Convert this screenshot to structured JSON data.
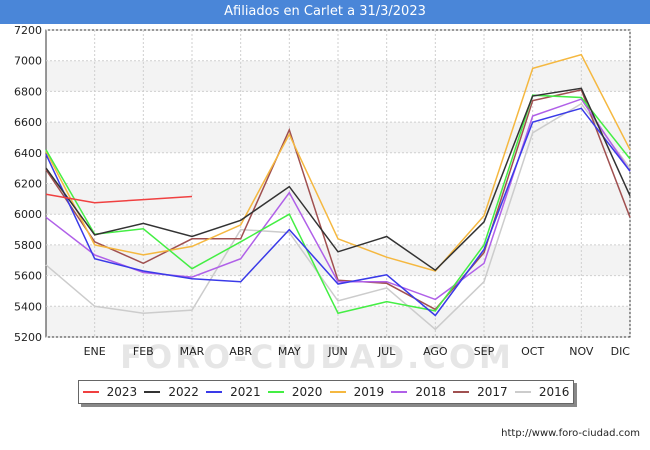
{
  "title": "Afiliados en Carlet a 31/3/2023",
  "source": "http://www.foro-ciudad.com",
  "watermark": "FORO-CIUDAD.COM",
  "chart_data": {
    "type": "line",
    "title": "Afiliados en Carlet a 31/3/2023",
    "categories": [
      "ENE",
      "FEB",
      "MAR",
      "ABR",
      "MAY",
      "JUN",
      "JUL",
      "AGO",
      "SEP",
      "OCT",
      "NOV",
      "DIC"
    ],
    "ylim": [
      5200,
      7200
    ],
    "yticks": [
      5200,
      5400,
      5600,
      5800,
      6000,
      6200,
      6400,
      6600,
      6800,
      7000,
      7200
    ],
    "grid": true,
    "legend_position": "bottom",
    "series": [
      {
        "name": "2023",
        "color": "#f04040",
        "start": 6130,
        "values": [
          6075,
          6095,
          6115,
          null,
          null,
          null,
          null,
          null,
          null,
          null,
          null,
          null
        ]
      },
      {
        "name": "2022",
        "color": "#333333",
        "start": 6300,
        "values": [
          5865,
          5940,
          5855,
          5960,
          6180,
          5755,
          5855,
          5635,
          5950,
          6770,
          6820,
          6120
        ]
      },
      {
        "name": "2021",
        "color": "#3a3ae8",
        "start": 6390,
        "values": [
          5710,
          5630,
          5580,
          5560,
          5900,
          5545,
          5605,
          5340,
          5770,
          6600,
          6690,
          6280
        ]
      },
      {
        "name": "2020",
        "color": "#44ee44",
        "start": 6420,
        "values": [
          5870,
          5905,
          5645,
          5820,
          6000,
          5355,
          5430,
          5370,
          5800,
          6775,
          6760,
          6360
        ]
      },
      {
        "name": "2019",
        "color": "#f5b840",
        "start": 6410,
        "values": [
          5800,
          5735,
          5790,
          5930,
          6520,
          5840,
          5720,
          5630,
          5990,
          6950,
          7040,
          6420
        ]
      },
      {
        "name": "2018",
        "color": "#b060e8",
        "start": 5980,
        "values": [
          5735,
          5620,
          5590,
          5710,
          6140,
          5560,
          5560,
          5445,
          5680,
          6640,
          6750,
          6280
        ]
      },
      {
        "name": "2017",
        "color": "#a05050",
        "start": 6290,
        "values": [
          5820,
          5680,
          5840,
          5840,
          6550,
          5570,
          5550,
          5380,
          5750,
          6740,
          6810,
          5980
        ]
      },
      {
        "name": "2016",
        "color": "#cccccc",
        "start": 5670,
        "values": [
          5400,
          5355,
          5375,
          5900,
          5880,
          5435,
          5520,
          5250,
          5560,
          6530,
          6720,
          6300
        ]
      }
    ]
  }
}
